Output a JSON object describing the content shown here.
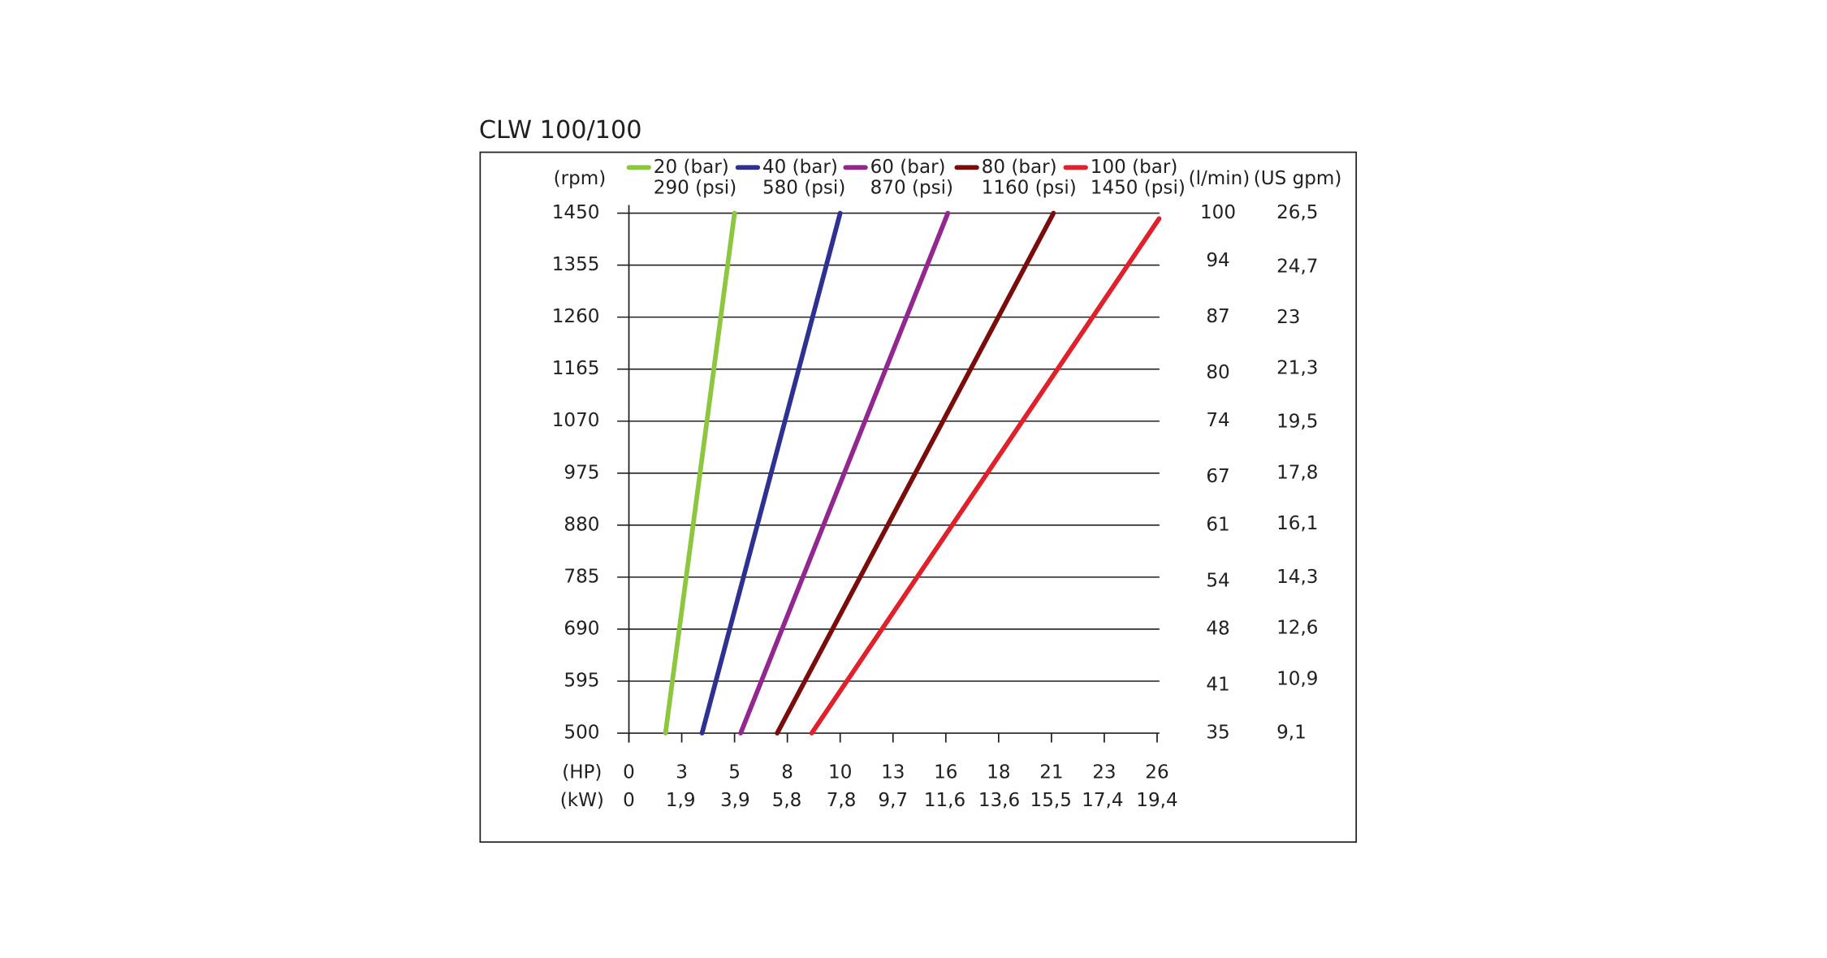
{
  "chart_data": {
    "type": "line",
    "title": "CLW 100/100",
    "x_label": "(HP)",
    "x2_label": "(kW)",
    "y_label": "(rpm)",
    "y2_label": "(l/min)",
    "y3_label": "(US gpm)",
    "xlim": [
      0,
      26
    ],
    "xticks": [
      0,
      {
        "value": 2.6,
        "label": "3"
      },
      {
        "value": 5.2,
        "label": "5"
      },
      {
        "value": 7.8,
        "label": "8"
      },
      {
        "value": 10.4,
        "label": "10"
      },
      13,
      {
        "value": 15.6,
        "label": "16"
      },
      {
        "value": 18.2,
        "label": "18"
      },
      {
        "value": 20.8,
        "label": "21"
      },
      {
        "value": 23.4,
        "label": "23"
      },
      26
    ],
    "x2lim": [
      0,
      19.4
    ],
    "x2ticks": [
      0,
      {
        "value": 1.9,
        "label": "1,9"
      },
      {
        "value": 3.9,
        "label": "3,9"
      },
      {
        "value": 5.8,
        "label": "5,8"
      },
      {
        "value": 7.8,
        "label": "7,8"
      },
      {
        "value": 9.7,
        "label": "9,7"
      },
      {
        "value": 11.6,
        "label": "11,6"
      },
      {
        "value": 13.6,
        "label": "13,6"
      },
      {
        "value": 15.5,
        "label": "15,5"
      },
      {
        "value": 17.4,
        "label": "17,4"
      },
      {
        "value": 19.4,
        "label": "19,4"
      }
    ],
    "ylim": [
      500,
      1450
    ],
    "yticks": [
      500,
      595,
      690,
      785,
      880,
      975,
      1070,
      1165,
      1260,
      1355,
      1450
    ],
    "y2lim": [
      35,
      100
    ],
    "y2ticks": [
      35,
      41,
      48,
      54,
      61,
      67,
      74,
      80,
      87,
      94,
      100
    ],
    "y3lim": [
      9.1,
      26.5
    ],
    "y3ticks": [
      {
        "value": 9.1,
        "label": "9,1"
      },
      {
        "value": 10.9,
        "label": "10,9"
      },
      {
        "value": 12.6,
        "label": "12,6"
      },
      {
        "value": 14.3,
        "label": "14,3"
      },
      {
        "value": 16.1,
        "label": "16,1"
      },
      {
        "value": 17.8,
        "label": "17,8"
      },
      {
        "value": 19.5,
        "label": "19,5"
      },
      {
        "value": 21.3,
        "label": "21,3"
      },
      23,
      {
        "value": 24.7,
        "label": "24,7"
      },
      {
        "value": 26.5,
        "label": "26,5"
      }
    ],
    "grid": true,
    "series": [
      {
        "name": "20 (bar)",
        "psi": "290 (psi)",
        "color": "#8dc63f",
        "x": [
          1.8,
          5.2
        ],
        "values": [
          500,
          1450
        ]
      },
      {
        "name": "40 (bar)",
        "psi": "580 (psi)",
        "color": "#2e3192",
        "x": [
          3.6,
          10.4
        ],
        "values": [
          500,
          1450
        ]
      },
      {
        "name": "60 (bar)",
        "psi": "870 (psi)",
        "color": "#92278f",
        "x": [
          5.5,
          15.7
        ],
        "values": [
          500,
          1450
        ]
      },
      {
        "name": "80 (bar)",
        "psi": "1160 (psi)",
        "color": "#7b0c0c",
        "x": [
          7.3,
          20.9
        ],
        "values": [
          500,
          1450
        ]
      },
      {
        "name": "100 (bar)",
        "psi": "1450 (psi)",
        "color": "#e0202a",
        "x": [
          9.0,
          26.1
        ],
        "values": [
          500,
          1440
        ]
      }
    ]
  }
}
